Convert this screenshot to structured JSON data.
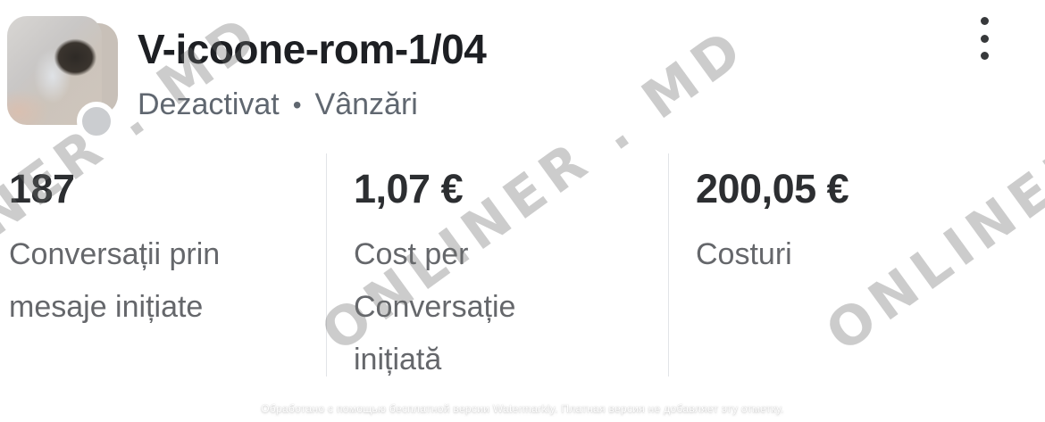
{
  "header": {
    "title": "V-icoone-rom-1/04",
    "status": "Dezactivat",
    "separator": "•",
    "objective": "Vânzări"
  },
  "stats": [
    {
      "value": "187",
      "label": "Conversații prin\nmesaje inițiate"
    },
    {
      "value": "1,07 €",
      "label": "Cost per\nConversație\ninițiată"
    },
    {
      "value": "200,05 €",
      "label": "Costuri"
    }
  ],
  "watermark": {
    "text": "ONLINER . MD",
    "color": "#d0d0d0"
  },
  "footer": {
    "notice": "Обработано с помощью бесплатной версии Watermarkly. Платная версия не добавляет эту отметку."
  },
  "colors": {
    "status_dot": "#cbcdd0",
    "title_text": "#1d1f23",
    "secondary_text": "#65676b",
    "divider": "#e2e4e7"
  }
}
